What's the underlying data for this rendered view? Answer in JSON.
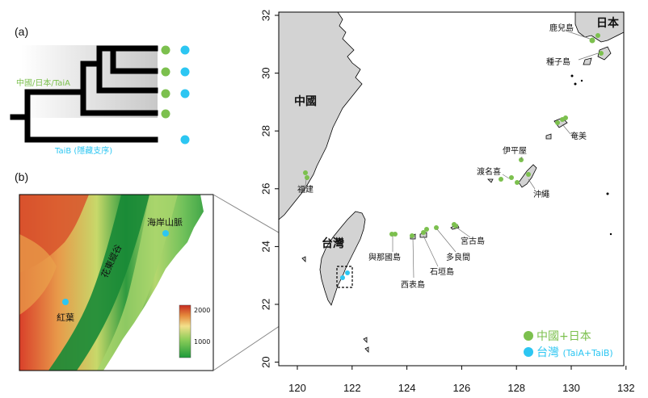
{
  "panels": {
    "a": "(a)",
    "b": "(b)"
  },
  "phylogeny": {
    "clade_label": "中國/日本/TaiA",
    "outgroup_label": "TaiB (隱藏支序)",
    "tips": [
      {
        "green": true,
        "blue": true
      },
      {
        "green": true,
        "blue": true
      },
      {
        "green": true,
        "blue": true
      },
      {
        "green": true,
        "blue": false
      },
      {
        "green": false,
        "blue": true
      }
    ]
  },
  "elevation": {
    "ridge_label": "花東縱谷",
    "mountain_label": "海岸山脈",
    "site_label": "紅葉",
    "legend_ticks": [
      "2000",
      "1000"
    ]
  },
  "map": {
    "x_ticks": [
      "120",
      "122",
      "124",
      "126",
      "128",
      "130",
      "132"
    ],
    "y_ticks": [
      "32",
      "30",
      "28",
      "26",
      "24",
      "22",
      "20"
    ],
    "regions": {
      "china": "中國",
      "japan": "日本",
      "taiwan": "台灣"
    },
    "places": {
      "kagoshima": "鹿兒島",
      "tanegashima": "種子島",
      "amami": "奄美",
      "iheya": "伊平屋",
      "tonaki": "渡名喜",
      "okinawa": "沖繩",
      "fujian": "福建",
      "yonaguni": "與那國島",
      "iriomote": "西表島",
      "ishigaki": "石垣島",
      "tarama": "多良間",
      "miyako": "宮古島"
    },
    "legend": [
      {
        "label": "中國+日本",
        "color": "#7cc04e"
      },
      {
        "label": "台灣",
        "suffix": "(TaiA+TaiB)",
        "color": "#2cc6f2"
      }
    ]
  },
  "colors": {
    "green": "#7cc04e",
    "blue": "#2cc6f2",
    "land": "#d3d3d3"
  }
}
